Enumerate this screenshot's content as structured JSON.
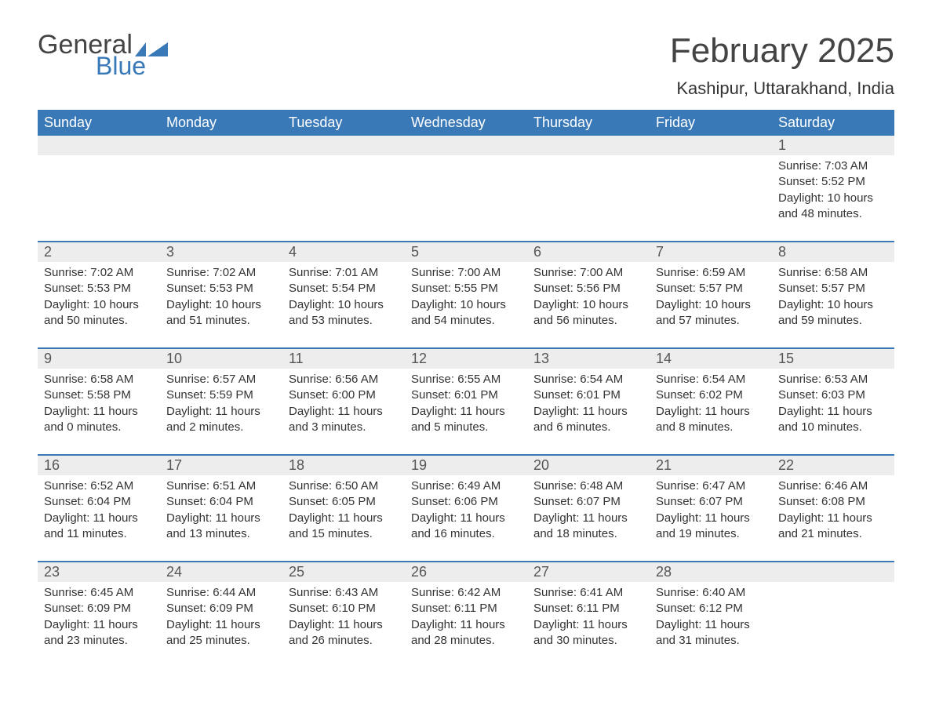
{
  "brand": {
    "word1": "General",
    "word2": "Blue",
    "color1": "#444444",
    "color2": "#3a79b7"
  },
  "header": {
    "title": "February 2025",
    "location": "Kashipur, Uttarakhand, India"
  },
  "styling": {
    "header_bg": "#3a79b7",
    "header_text": "#ffffff",
    "daynum_bg": "#ededed",
    "daynum_text": "#555555",
    "body_text": "#333333",
    "divider": "#3a79b7",
    "page_bg": "#ffffff",
    "title_fontsize": 44,
    "location_fontsize": 22,
    "weekday_fontsize": 18,
    "body_fontsize": 15
  },
  "weekdays": [
    "Sunday",
    "Monday",
    "Tuesday",
    "Wednesday",
    "Thursday",
    "Friday",
    "Saturday"
  ],
  "labels": {
    "sunrise": "Sunrise:",
    "sunset": "Sunset:",
    "daylight": "Daylight:"
  },
  "weeks": [
    [
      null,
      null,
      null,
      null,
      null,
      null,
      {
        "n": "1",
        "sunrise": "7:03 AM",
        "sunset": "5:52 PM",
        "daylight": "10 hours and 48 minutes."
      }
    ],
    [
      {
        "n": "2",
        "sunrise": "7:02 AM",
        "sunset": "5:53 PM",
        "daylight": "10 hours and 50 minutes."
      },
      {
        "n": "3",
        "sunrise": "7:02 AM",
        "sunset": "5:53 PM",
        "daylight": "10 hours and 51 minutes."
      },
      {
        "n": "4",
        "sunrise": "7:01 AM",
        "sunset": "5:54 PM",
        "daylight": "10 hours and 53 minutes."
      },
      {
        "n": "5",
        "sunrise": "7:00 AM",
        "sunset": "5:55 PM",
        "daylight": "10 hours and 54 minutes."
      },
      {
        "n": "6",
        "sunrise": "7:00 AM",
        "sunset": "5:56 PM",
        "daylight": "10 hours and 56 minutes."
      },
      {
        "n": "7",
        "sunrise": "6:59 AM",
        "sunset": "5:57 PM",
        "daylight": "10 hours and 57 minutes."
      },
      {
        "n": "8",
        "sunrise": "6:58 AM",
        "sunset": "5:57 PM",
        "daylight": "10 hours and 59 minutes."
      }
    ],
    [
      {
        "n": "9",
        "sunrise": "6:58 AM",
        "sunset": "5:58 PM",
        "daylight": "11 hours and 0 minutes."
      },
      {
        "n": "10",
        "sunrise": "6:57 AM",
        "sunset": "5:59 PM",
        "daylight": "11 hours and 2 minutes."
      },
      {
        "n": "11",
        "sunrise": "6:56 AM",
        "sunset": "6:00 PM",
        "daylight": "11 hours and 3 minutes."
      },
      {
        "n": "12",
        "sunrise": "6:55 AM",
        "sunset": "6:01 PM",
        "daylight": "11 hours and 5 minutes."
      },
      {
        "n": "13",
        "sunrise": "6:54 AM",
        "sunset": "6:01 PM",
        "daylight": "11 hours and 6 minutes."
      },
      {
        "n": "14",
        "sunrise": "6:54 AM",
        "sunset": "6:02 PM",
        "daylight": "11 hours and 8 minutes."
      },
      {
        "n": "15",
        "sunrise": "6:53 AM",
        "sunset": "6:03 PM",
        "daylight": "11 hours and 10 minutes."
      }
    ],
    [
      {
        "n": "16",
        "sunrise": "6:52 AM",
        "sunset": "6:04 PM",
        "daylight": "11 hours and 11 minutes."
      },
      {
        "n": "17",
        "sunrise": "6:51 AM",
        "sunset": "6:04 PM",
        "daylight": "11 hours and 13 minutes."
      },
      {
        "n": "18",
        "sunrise": "6:50 AM",
        "sunset": "6:05 PM",
        "daylight": "11 hours and 15 minutes."
      },
      {
        "n": "19",
        "sunrise": "6:49 AM",
        "sunset": "6:06 PM",
        "daylight": "11 hours and 16 minutes."
      },
      {
        "n": "20",
        "sunrise": "6:48 AM",
        "sunset": "6:07 PM",
        "daylight": "11 hours and 18 minutes."
      },
      {
        "n": "21",
        "sunrise": "6:47 AM",
        "sunset": "6:07 PM",
        "daylight": "11 hours and 19 minutes."
      },
      {
        "n": "22",
        "sunrise": "6:46 AM",
        "sunset": "6:08 PM",
        "daylight": "11 hours and 21 minutes."
      }
    ],
    [
      {
        "n": "23",
        "sunrise": "6:45 AM",
        "sunset": "6:09 PM",
        "daylight": "11 hours and 23 minutes."
      },
      {
        "n": "24",
        "sunrise": "6:44 AM",
        "sunset": "6:09 PM",
        "daylight": "11 hours and 25 minutes."
      },
      {
        "n": "25",
        "sunrise": "6:43 AM",
        "sunset": "6:10 PM",
        "daylight": "11 hours and 26 minutes."
      },
      {
        "n": "26",
        "sunrise": "6:42 AM",
        "sunset": "6:11 PM",
        "daylight": "11 hours and 28 minutes."
      },
      {
        "n": "27",
        "sunrise": "6:41 AM",
        "sunset": "6:11 PM",
        "daylight": "11 hours and 30 minutes."
      },
      {
        "n": "28",
        "sunrise": "6:40 AM",
        "sunset": "6:12 PM",
        "daylight": "11 hours and 31 minutes."
      },
      null
    ]
  ]
}
